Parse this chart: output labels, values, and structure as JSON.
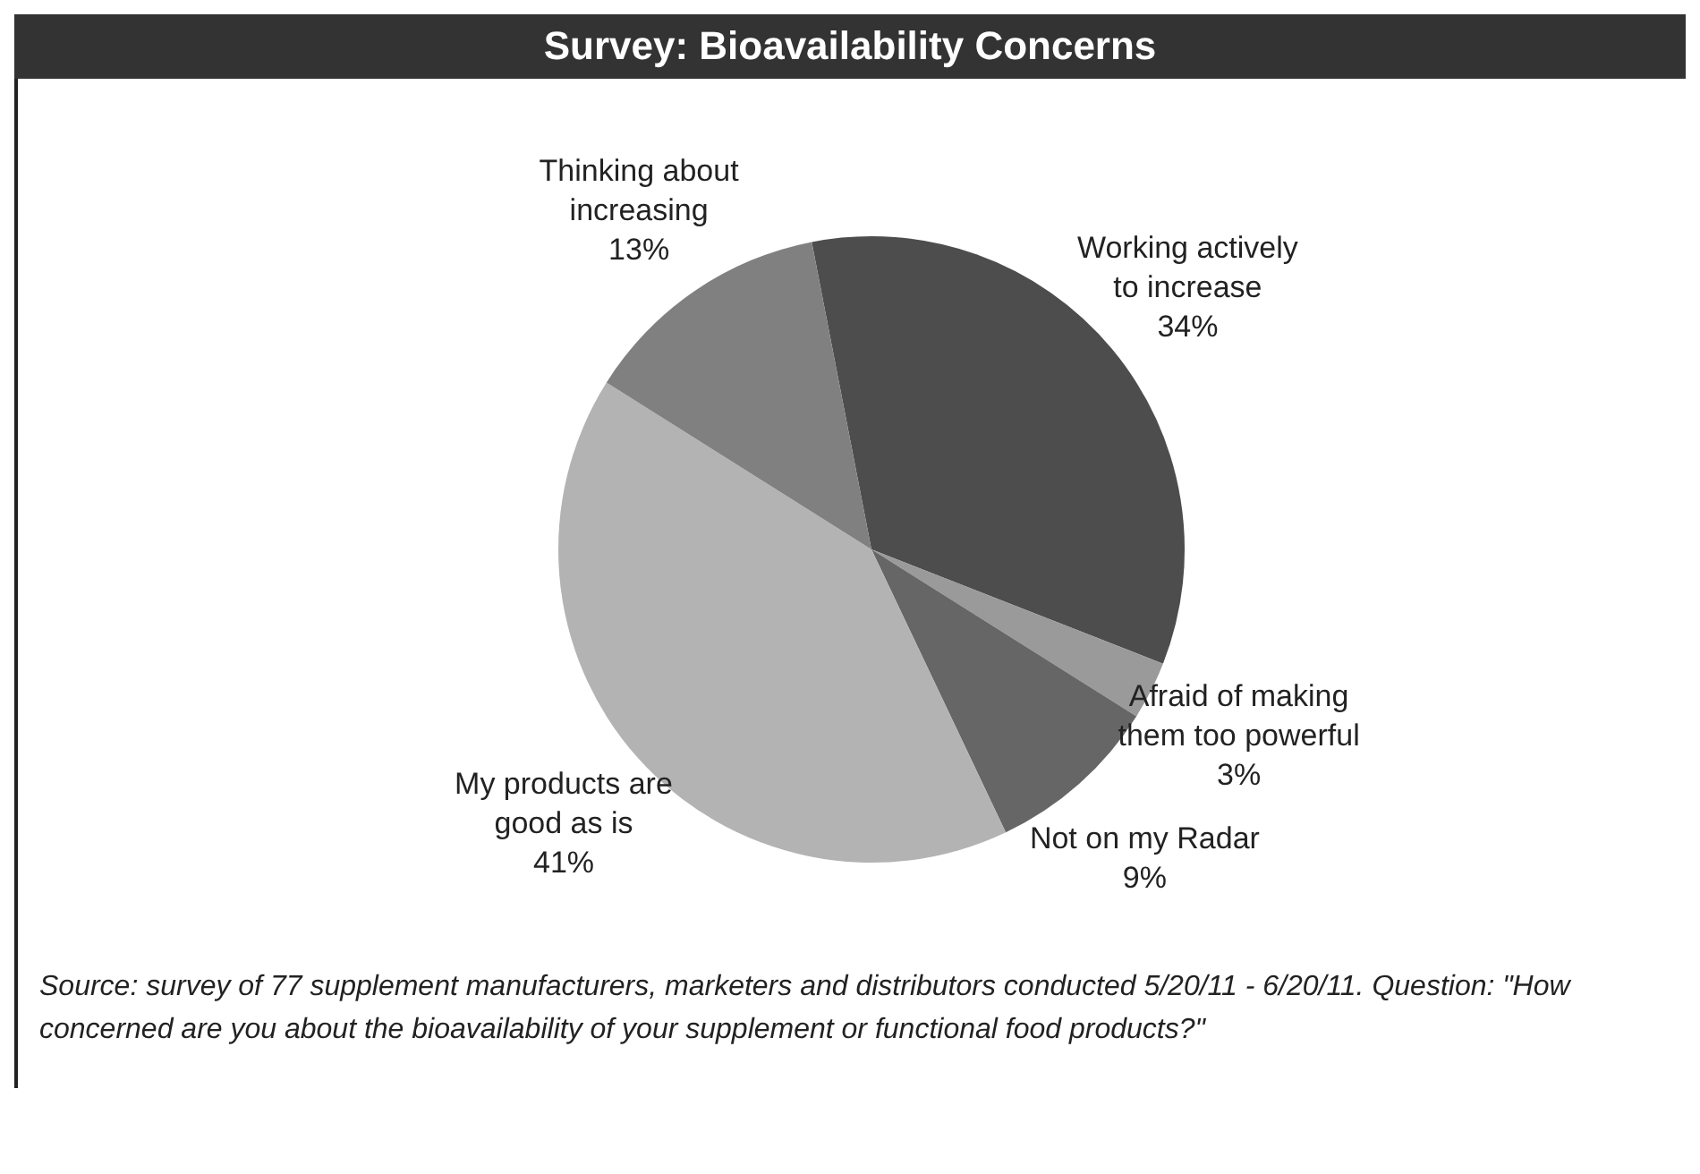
{
  "chart_data": {
    "type": "pie",
    "title": "Survey: Bioavailability Concerns",
    "categories": [
      "Working actively to increase",
      "Afraid of making them too powerful",
      "Not on my Radar",
      "My products are good as is",
      "Thinking about increasing"
    ],
    "values": [
      34,
      3,
      9,
      41,
      13
    ],
    "colors": [
      "#4d4d4d",
      "#9a9a9a",
      "#666666",
      "#b3b3b3",
      "#808080"
    ],
    "value_labels": [
      "34%",
      "3%",
      "9%",
      "41%",
      "13%"
    ],
    "legend": false,
    "annotations": [
      "Source: survey of 77 supplement manufacturers, marketers and distributors conducted 5/20/11 - 6/20/11. Question: \"How concerned are you about the bioavailability of your supplement or functional food products?\""
    ]
  }
}
